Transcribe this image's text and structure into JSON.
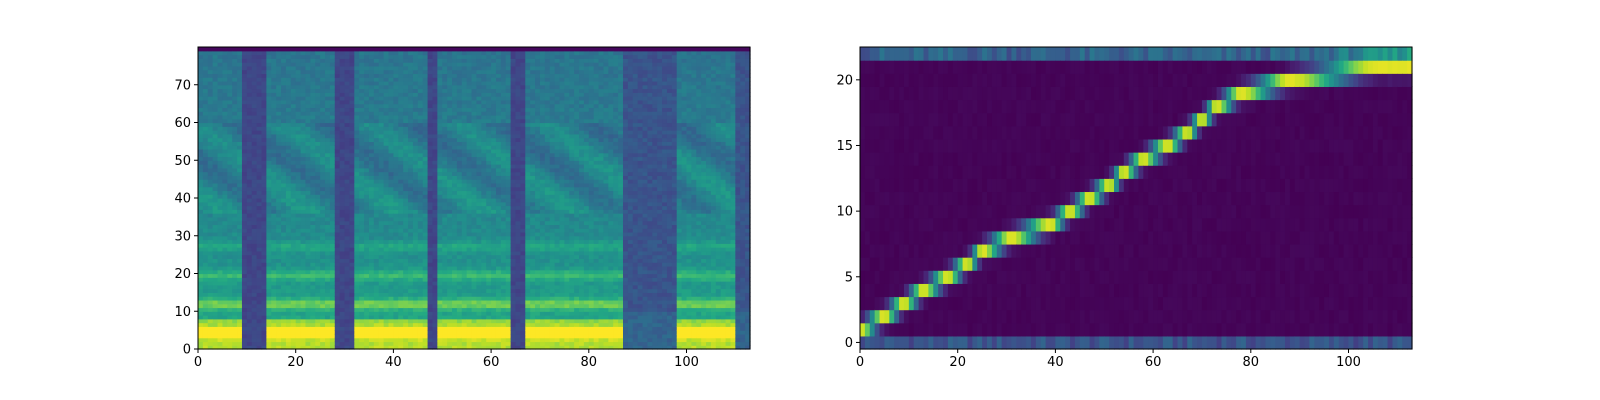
{
  "chart_data": [
    {
      "type": "heatmap",
      "colormap": "viridis",
      "xlim": [
        0,
        113
      ],
      "ylim": [
        0,
        80
      ],
      "origin": "lower",
      "xticks": [
        0,
        20,
        40,
        60,
        80,
        100
      ],
      "yticks": [
        0,
        10,
        20,
        30,
        40,
        50,
        60,
        70
      ],
      "grid": false,
      "segments": [
        {
          "x": [
            0,
            9
          ],
          "type": "voiced"
        },
        {
          "x": [
            9,
            14
          ],
          "type": "silence"
        },
        {
          "x": [
            14,
            28
          ],
          "type": "voiced"
        },
        {
          "x": [
            28,
            32
          ],
          "type": "silence"
        },
        {
          "x": [
            32,
            47
          ],
          "type": "voiced"
        },
        {
          "x": [
            47,
            49
          ],
          "type": "silence"
        },
        {
          "x": [
            49,
            64
          ],
          "type": "voiced"
        },
        {
          "x": [
            64,
            67
          ],
          "type": "silence"
        },
        {
          "x": [
            67,
            87
          ],
          "type": "voiced"
        },
        {
          "x": [
            87,
            98
          ],
          "type": "quiet"
        },
        {
          "x": [
            98,
            110
          ],
          "type": "voiced"
        },
        {
          "x": [
            110,
            113
          ],
          "type": "quiet"
        }
      ]
    },
    {
      "type": "heatmap",
      "colormap": "viridis",
      "xlim": [
        0,
        113
      ],
      "ylim": [
        -0.5,
        22.5
      ],
      "origin": "lower",
      "xticks": [
        0,
        20,
        40,
        60,
        80,
        100
      ],
      "yticks": [
        0,
        5,
        10,
        15,
        20
      ],
      "grid": false,
      "alignment_path": [
        {
          "x": 0,
          "y": 1
        },
        {
          "x": 5,
          "y": 2
        },
        {
          "x": 9,
          "y": 3
        },
        {
          "x": 13,
          "y": 4
        },
        {
          "x": 18,
          "y": 5
        },
        {
          "x": 22,
          "y": 6
        },
        {
          "x": 25,
          "y": 7
        },
        {
          "x": 31,
          "y": 8
        },
        {
          "x": 39,
          "y": 9
        },
        {
          "x": 43,
          "y": 10
        },
        {
          "x": 47,
          "y": 11
        },
        {
          "x": 51,
          "y": 12
        },
        {
          "x": 54,
          "y": 13
        },
        {
          "x": 58,
          "y": 14
        },
        {
          "x": 63,
          "y": 15
        },
        {
          "x": 67,
          "y": 16
        },
        {
          "x": 70,
          "y": 17
        },
        {
          "x": 73,
          "y": 18
        },
        {
          "x": 78,
          "y": 19
        },
        {
          "x": 88,
          "y": 20
        },
        {
          "x": 106,
          "y": 21
        }
      ]
    }
  ]
}
